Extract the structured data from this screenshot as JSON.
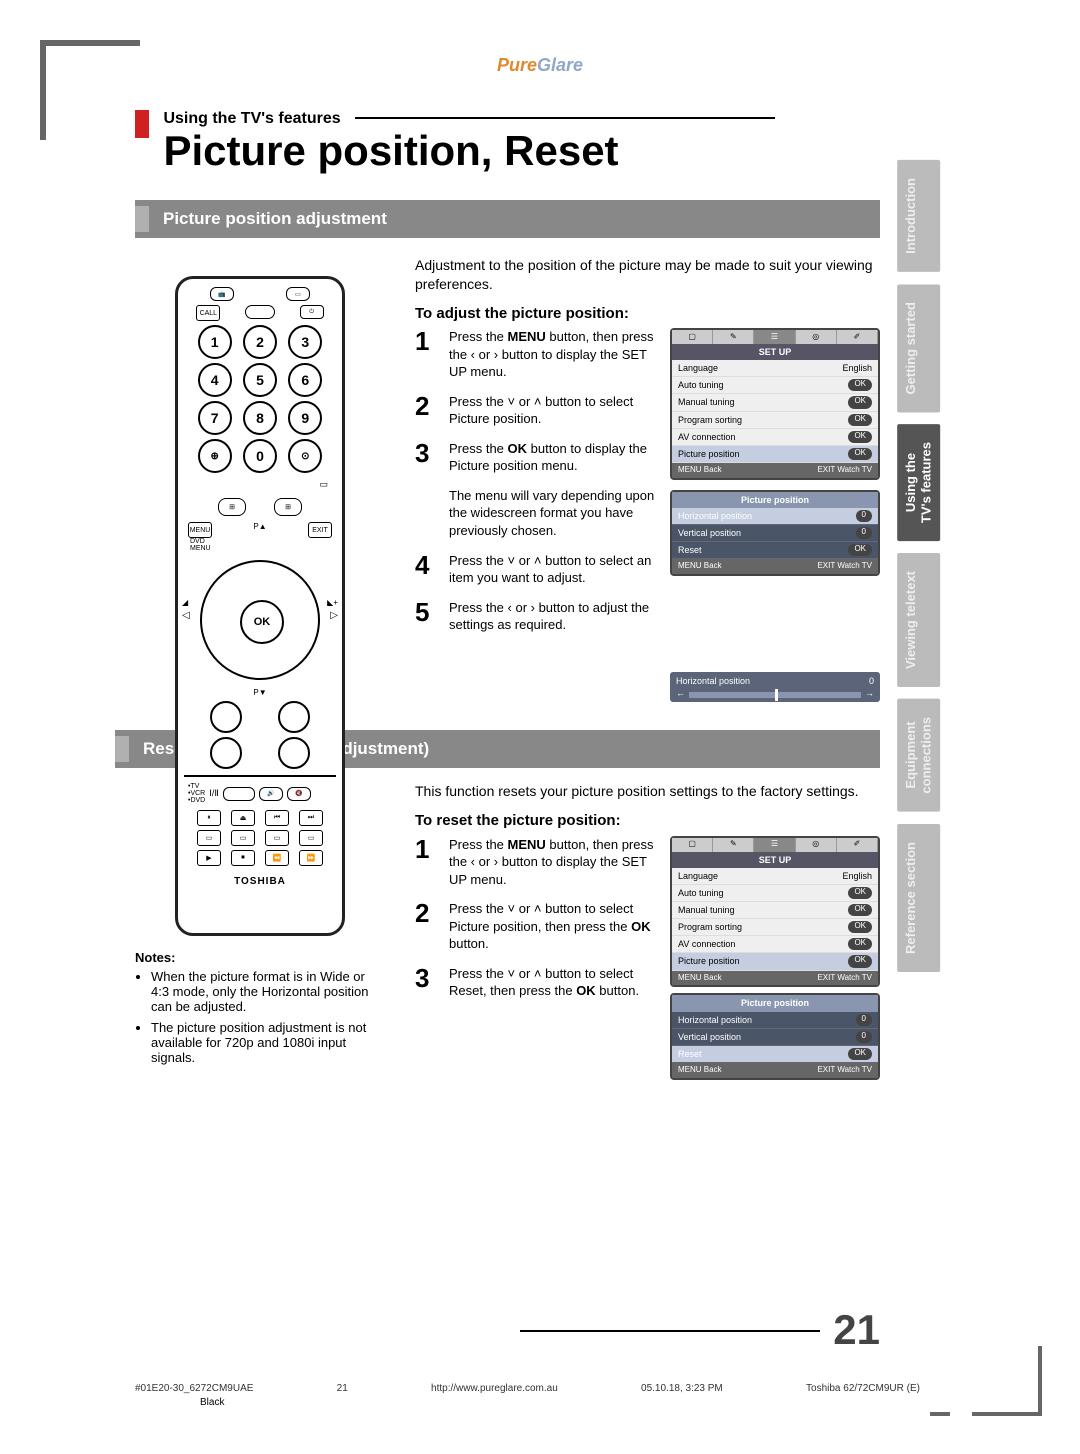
{
  "logo": {
    "part1": "Pure",
    "part2": "Glare"
  },
  "kicker": "Using the TV's features",
  "title": "Picture position, Reset",
  "section1": {
    "heading": "Picture position adjustment",
    "intro": "Adjustment to the position of the picture may be made to suit your viewing preferences.",
    "subhead": "To adjust the picture position:",
    "steps": [
      "Press the MENU button, then press the  ‹  or  ›  button to display the SET UP menu.",
      "Press the  ˅  or  ˄  button to select Picture position.",
      "Press the OK button to display the Picture position menu.",
      "Press the  ˅  or  ˄  button to select an item you want to adjust.",
      "Press the  ‹  or  ›  button to adjust the settings as required."
    ],
    "extra": "The menu will vary depending upon the widescreen format you have previously chosen.",
    "osd1": {
      "title": "SET UP",
      "rows": [
        {
          "k": "Language",
          "v": "English"
        },
        {
          "k": "Auto tuning",
          "v": "OK"
        },
        {
          "k": "Manual tuning",
          "v": "OK"
        },
        {
          "k": "Program sorting",
          "v": "OK"
        },
        {
          "k": "AV connection",
          "v": "OK"
        },
        {
          "k": "Picture position",
          "v": "OK",
          "sel": true
        }
      ],
      "foot": {
        "l": "MENU Back",
        "r": "EXIT Watch TV"
      }
    },
    "osd2": {
      "title": "Picture position",
      "rows": [
        {
          "k": "Horizontal position",
          "v": "0",
          "sel": true
        },
        {
          "k": "Vertical position",
          "v": "0"
        },
        {
          "k": "Reset",
          "v": "OK"
        }
      ],
      "foot": {
        "l": "MENU Back",
        "r": "EXIT Watch TV"
      }
    },
    "slider": {
      "label": "Horizontal position",
      "value": "0"
    }
  },
  "section2": {
    "heading": "Reset (Picture position adjustment)",
    "intro": "This function resets your picture position settings to the factory settings.",
    "subhead": "To reset the picture position:",
    "steps": [
      "Press the MENU button, then press the  ‹  or  ›  button to display the SET UP menu.",
      "Press the  ˅  or  ˄  button to select Picture position, then press the OK button.",
      "Press the  ˅  or  ˄  button to select Reset, then press the OK button."
    ],
    "osd1": {
      "title": "SET UP",
      "rows": [
        {
          "k": "Language",
          "v": "English"
        },
        {
          "k": "Auto tuning",
          "v": "OK"
        },
        {
          "k": "Manual tuning",
          "v": "OK"
        },
        {
          "k": "Program sorting",
          "v": "OK"
        },
        {
          "k": "AV connection",
          "v": "OK"
        },
        {
          "k": "Picture position",
          "v": "OK",
          "sel": true
        }
      ],
      "foot": {
        "l": "MENU Back",
        "r": "EXIT Watch TV"
      }
    },
    "osd2": {
      "title": "Picture position",
      "rows": [
        {
          "k": "Horizontal position",
          "v": "0"
        },
        {
          "k": "Vertical position",
          "v": "0"
        },
        {
          "k": "Reset",
          "v": "OK",
          "sel": true
        }
      ],
      "foot": {
        "l": "MENU Back",
        "r": "EXIT Watch TV"
      }
    }
  },
  "notes": {
    "heading": "Notes:",
    "items": [
      "When the picture format is in Wide or 4:3 mode, only the Horizontal position can be adjusted.",
      "The picture position adjustment is not available for 720p and 1080i input signals."
    ]
  },
  "sidetabs": [
    {
      "label": "Introduction",
      "active": false
    },
    {
      "label": "Getting started",
      "active": false
    },
    {
      "label": "Using the\nTV's features",
      "active": true
    },
    {
      "label": "Viewing teletext",
      "active": false
    },
    {
      "label": "Equipment\nconnections",
      "active": false
    },
    {
      "label": "Reference section",
      "active": false
    }
  ],
  "remote": {
    "brand": "TOSHIBA",
    "ok": "OK",
    "numbers": [
      "1",
      "2",
      "3",
      "4",
      "5",
      "6",
      "7",
      "8",
      "9",
      "0"
    ],
    "menu": "MENU",
    "exit": "EXIT",
    "dvdmenu": "DVD\nMENU",
    "call": "CALL",
    "labels": {
      "pa": "P▲",
      "pv": "P▼",
      "tv": "TV",
      "vcr": "VCR",
      "dvd": "DVD"
    }
  },
  "pagenum": "21",
  "footer": {
    "left": "#01E20-30_6272CM9UAE",
    "center_small": "21",
    "url": "http://www.pureglare.com.au",
    "date": "05.10.18, 3:23 PM",
    "model": "Toshiba 62/72CM9UR (E)",
    "black": "Black"
  }
}
